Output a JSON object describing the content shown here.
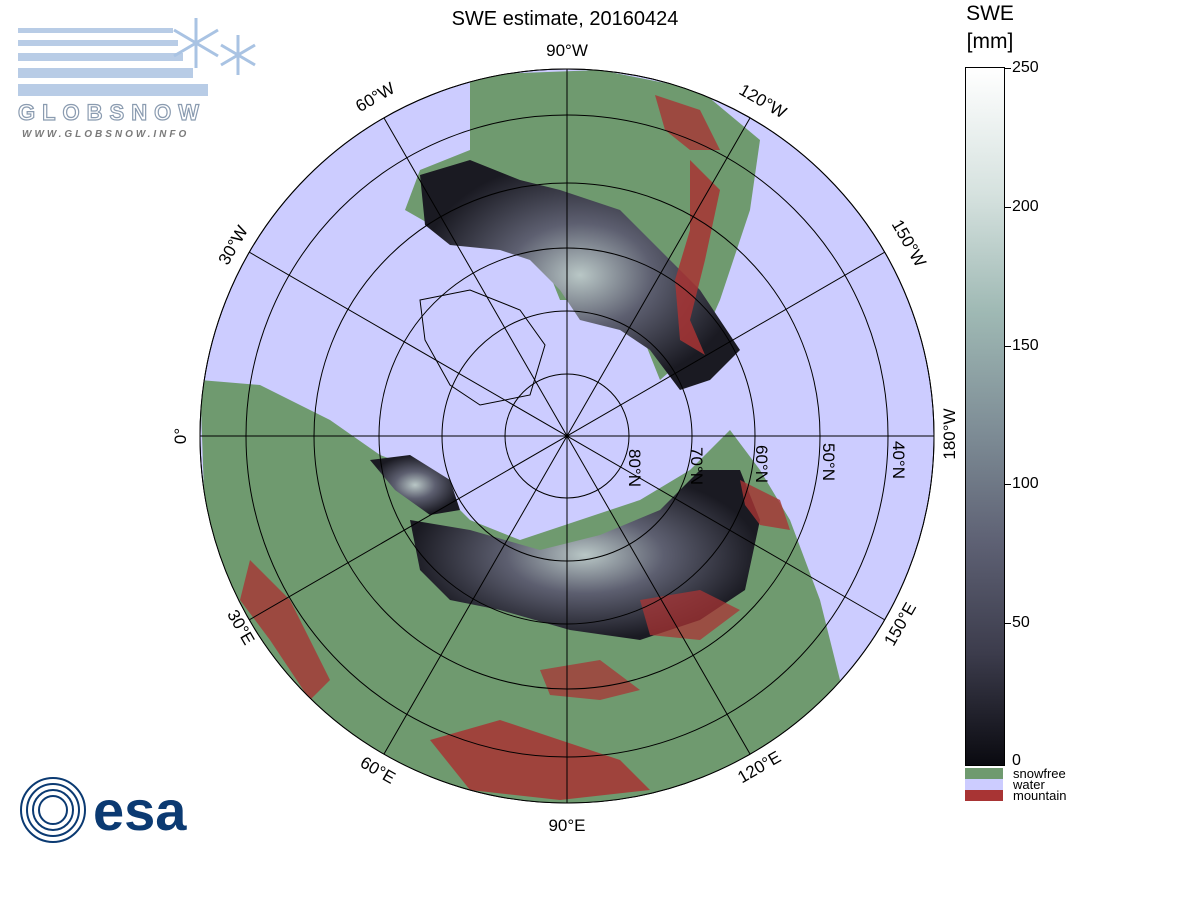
{
  "title": "SWE estimate, 20160424",
  "logos": {
    "globsnow_wordmark": "GLOBSNOW",
    "globsnow_url": "WWW.GLOBSNOW.INFO",
    "esa_wordmark": "esa"
  },
  "map": {
    "projection": "north polar stereographic",
    "lon_labels": [
      "0°",
      "30°W",
      "60°W",
      "90°W",
      "120°W",
      "150°W",
      "180°W",
      "150°E",
      "120°E",
      "90°E",
      "60°E",
      "30°E"
    ],
    "lat_labels": [
      "40°N",
      "50°N",
      "60°N",
      "70°N",
      "80°N"
    ],
    "colors": {
      "water": "#ccccff",
      "snowfree": "#6f9a6f",
      "mountain": "#a83434",
      "grid": "#000000"
    }
  },
  "colorbar": {
    "title_line1": "SWE",
    "title_line2": "[mm]",
    "ticks": [
      "250",
      "200",
      "150",
      "100",
      "50",
      "0"
    ],
    "range_mm": [
      0,
      250
    ],
    "legend": [
      {
        "label": "snowfree",
        "color": "#6f9a6f"
      },
      {
        "label": "water",
        "color": "#ccccff"
      },
      {
        "label": "mountain",
        "color": "#a83434"
      }
    ]
  }
}
